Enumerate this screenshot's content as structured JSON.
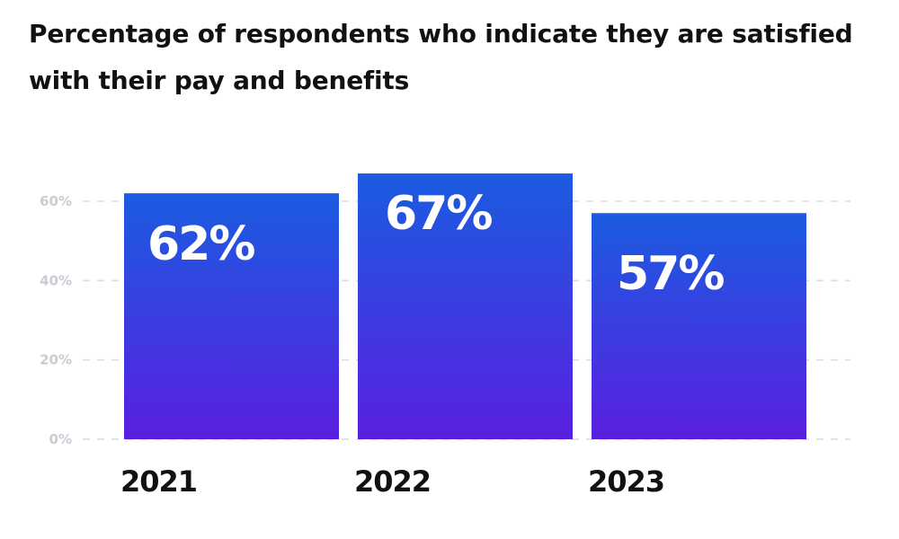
{
  "chart_data": {
    "type": "bar",
    "title": "Percentage of respondents who indicate they are satisfied with their pay and benefits",
    "xlabel": "",
    "ylabel": "",
    "categories": [
      "2021",
      "2022",
      "2023"
    ],
    "values": [
      62,
      67,
      57
    ],
    "value_labels": [
      "62%",
      "67%",
      "57%"
    ],
    "y_ticks": [
      0,
      20,
      40,
      60
    ],
    "y_tick_labels": [
      "0%",
      "20%",
      "40%",
      "60%"
    ],
    "ylim": [
      0,
      60
    ],
    "grid": true,
    "legend": "none",
    "colors": {
      "bar_top": "#1a5ce0",
      "bar_bottom": "#5a1fe0",
      "grid": "#d9dbe0",
      "tick_label": "#c9ccd4",
      "category_label": "#111111",
      "value_label": "#ffffff"
    }
  }
}
